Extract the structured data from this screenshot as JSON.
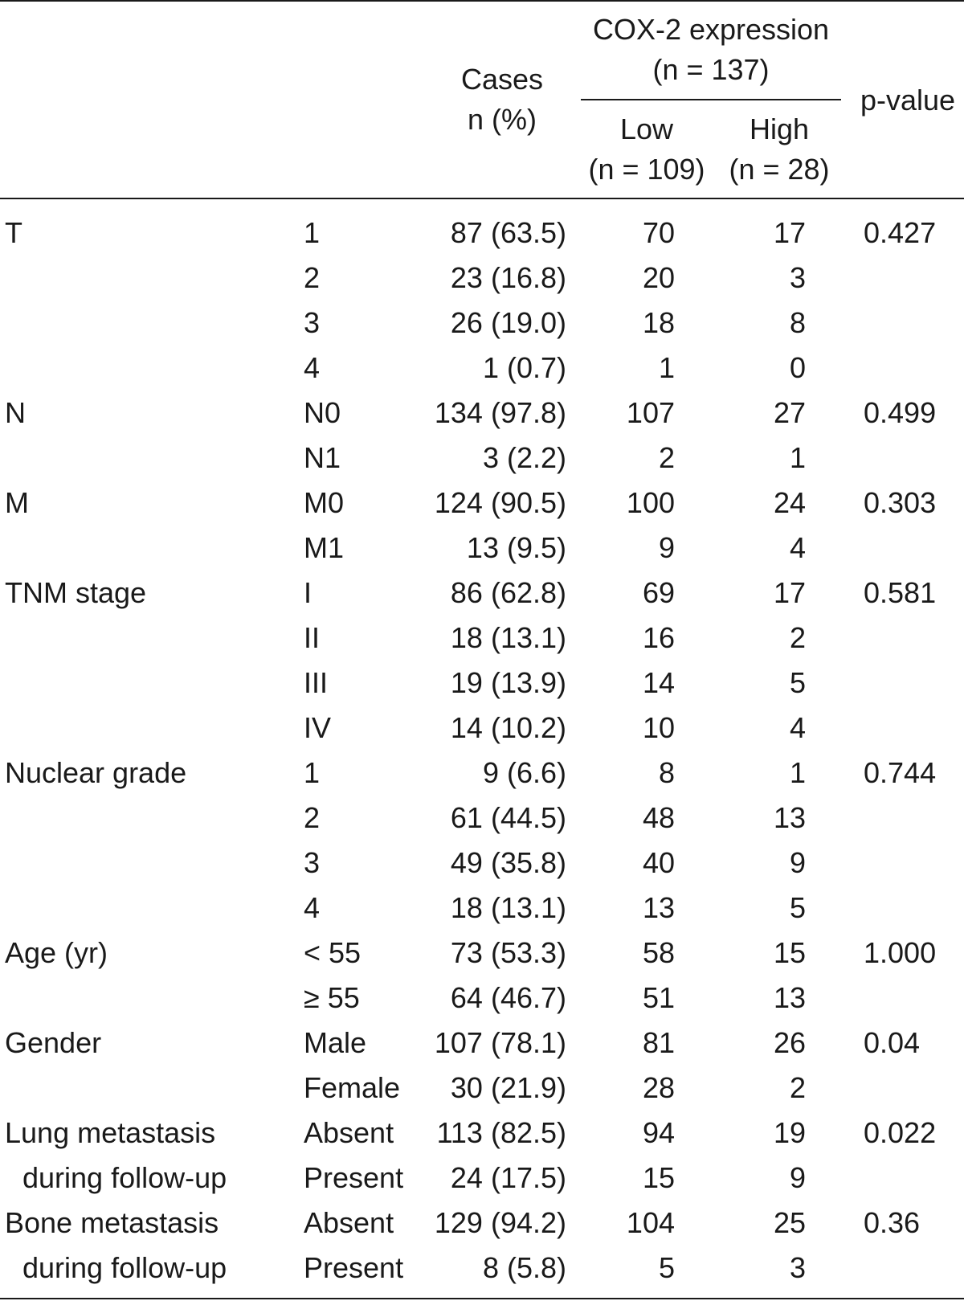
{
  "header": {
    "cases_line1": "Cases",
    "cases_line2": "n (%)",
    "cox_line1": "COX-2 expression",
    "cox_line2": "(n = 137)",
    "low_line1": "Low",
    "low_line2": "(n = 109)",
    "high_line1": "High",
    "high_line2": "(n = 28)",
    "pvalue": "p-value"
  },
  "rows": [
    {
      "char1": "T",
      "char2": "",
      "cat": "1",
      "cases": "87 (63.5)",
      "low": "70",
      "high": "17",
      "p": "0.427"
    },
    {
      "char1": "",
      "char2": "",
      "cat": "2",
      "cases": "23 (16.8)",
      "low": "20",
      "high": "3",
      "p": ""
    },
    {
      "char1": "",
      "char2": "",
      "cat": "3",
      "cases": "26 (19.0)",
      "low": "18",
      "high": "8",
      "p": ""
    },
    {
      "char1": "",
      "char2": "",
      "cat": "4",
      "cases": "1 (0.7)",
      "low": "1",
      "high": "0",
      "p": ""
    },
    {
      "char1": "N",
      "char2": "",
      "cat": "N0",
      "cases": "134 (97.8)",
      "low": "107",
      "high": "27",
      "p": "0.499"
    },
    {
      "char1": "",
      "char2": "",
      "cat": "N1",
      "cases": "3 (2.2)",
      "low": "2",
      "high": "1",
      "p": ""
    },
    {
      "char1": "M",
      "char2": "",
      "cat": "M0",
      "cases": "124 (90.5)",
      "low": "100",
      "high": "24",
      "p": "0.303"
    },
    {
      "char1": "",
      "char2": "",
      "cat": "M1",
      "cases": "13 (9.5)",
      "low": "9",
      "high": "4",
      "p": ""
    },
    {
      "char1": "TNM stage",
      "char2": "",
      "cat": "I",
      "cases": "86 (62.8)",
      "low": "69",
      "high": "17",
      "p": "0.581"
    },
    {
      "char1": "",
      "char2": "",
      "cat": "II",
      "cases": "18 (13.1)",
      "low": "16",
      "high": "2",
      "p": ""
    },
    {
      "char1": "",
      "char2": "",
      "cat": "III",
      "cases": "19 (13.9)",
      "low": "14",
      "high": "5",
      "p": ""
    },
    {
      "char1": "",
      "char2": "",
      "cat": "IV",
      "cases": "14 (10.2)",
      "low": "10",
      "high": "4",
      "p": ""
    },
    {
      "char1": "Nuclear grade",
      "char2": "",
      "cat": "1",
      "cases": "9 (6.6)",
      "low": "8",
      "high": "1",
      "p": "0.744"
    },
    {
      "char1": "",
      "char2": "",
      "cat": "2",
      "cases": "61 (44.5)",
      "low": "48",
      "high": "13",
      "p": ""
    },
    {
      "char1": "",
      "char2": "",
      "cat": "3",
      "cases": "49 (35.8)",
      "low": "40",
      "high": "9",
      "p": ""
    },
    {
      "char1": "",
      "char2": "",
      "cat": "4",
      "cases": "18 (13.1)",
      "low": "13",
      "high": "5",
      "p": ""
    },
    {
      "char1": "Age (yr)",
      "char2": "",
      "cat": "< 55",
      "cases": "73 (53.3)",
      "low": "58",
      "high": "15",
      "p": "1.000"
    },
    {
      "char1": "",
      "char2": "",
      "cat": "≥ 55",
      "cases": "64 (46.7)",
      "low": "51",
      "high": "13",
      "p": ""
    },
    {
      "char1": "Gender",
      "char2": "",
      "cat": "Male",
      "cases": "107 (78.1)",
      "low": "81",
      "high": "26",
      "p": "0.04"
    },
    {
      "char1": "",
      "char2": "",
      "cat": "Female",
      "cases": "30 (21.9)",
      "low": "28",
      "high": "2",
      "p": ""
    },
    {
      "char1": "Lung metastasis",
      "char2": "",
      "cat": "Absent",
      "cases": "113 (82.5)",
      "low": "94",
      "high": "19",
      "p": "0.022"
    },
    {
      "char1": "",
      "char2": "during follow-up",
      "cat": "Present",
      "cases": "24 (17.5)",
      "low": "15",
      "high": "9",
      "p": ""
    },
    {
      "char1": "Bone metastasis",
      "char2": "",
      "cat": "Absent",
      "cases": "129 (94.2)",
      "low": "104",
      "high": "25",
      "p": "0.36"
    },
    {
      "char1": "",
      "char2": "during follow-up",
      "cat": "Present",
      "cases": "8 (5.8)",
      "low": "5",
      "high": "3",
      "p": ""
    }
  ]
}
